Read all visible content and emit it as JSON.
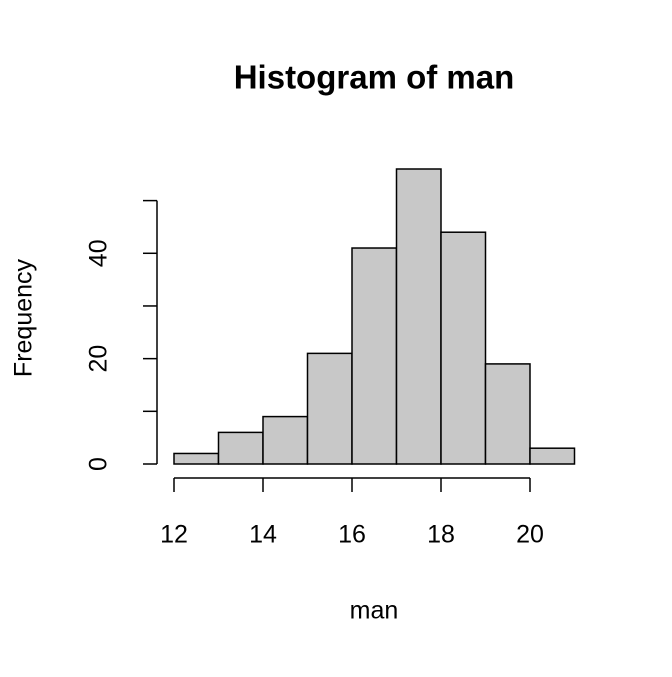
{
  "chart_data": {
    "type": "histogram",
    "title": "Histogram of man",
    "xlabel": "man",
    "ylabel": "Frequency",
    "bins": [
      12,
      13,
      14,
      15,
      16,
      17,
      18,
      19,
      20,
      21
    ],
    "counts": [
      2,
      6,
      9,
      21,
      41,
      56,
      44,
      19,
      3
    ],
    "color": "#c8c8c8",
    "xlim": [
      12,
      21
    ],
    "ylim": [
      0,
      56
    ],
    "xticks": [
      12,
      14,
      16,
      18,
      20
    ],
    "yticks": [
      0,
      20,
      40
    ],
    "yminorticks": [
      10,
      30,
      50
    ]
  }
}
